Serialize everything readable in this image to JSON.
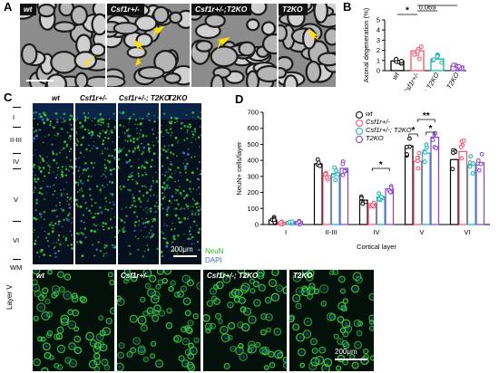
{
  "panel_labels": {
    "a": "A",
    "b": "B",
    "c": "C",
    "d": "D"
  },
  "panel_a": {
    "images": [
      {
        "label": "wt"
      },
      {
        "label": "Csf1r+/-"
      },
      {
        "label": "Csf1r+/-;T2KO"
      },
      {
        "label": "T2KO"
      }
    ]
  },
  "panel_c": {
    "columns": [
      "wt",
      "Csf1r+/-",
      "Csf1r+/-; T2KO",
      "T2KO"
    ],
    "layers": [
      "I",
      "II-III",
      "IV",
      "V",
      "VI",
      "WM"
    ],
    "scale_bar": "200μm",
    "stain_neun": "NeuN",
    "stain_dapi": "DAPI",
    "colors": {
      "neun": "#33cc33",
      "dapi": "#3f6fd8"
    }
  },
  "panel_lower": {
    "columns": [
      "wt",
      "Csf1r+/-",
      "Csf1r+/-; T2KO",
      "T2KO"
    ],
    "row_label": "Layer V",
    "scale_bar": "200μm"
  },
  "chart_data": [
    {
      "type": "bar",
      "panel": "B",
      "categories": [
        "wt",
        "Csf1r+/-",
        "Csf1r+/-; T2KO",
        "T2KO"
      ],
      "values": [
        0.95,
        1.95,
        1.15,
        0.45
      ],
      "colors": [
        "#000000",
        "#ff4f6e",
        "#11b5b5",
        "#8a3fd1"
      ],
      "ylabel": "Axonal degeneration (%)",
      "ylim": [
        0,
        5
      ],
      "yticks": [
        "0",
        "1",
        "2",
        "3",
        "4",
        "5"
      ],
      "annotations": [
        {
          "from": "wt",
          "to": "Csf1r+/-",
          "text": "*"
        },
        {
          "from": "Csf1r+/-",
          "to": "Csf1r+/-; T2KO",
          "text": "0.069"
        },
        {
          "from": "Csf1r+/-",
          "to": "T2KO",
          "text": "**"
        }
      ]
    },
    {
      "type": "bar",
      "panel": "D",
      "categories": [
        "I",
        "II-III",
        "IV",
        "V",
        "VI"
      ],
      "series": [
        {
          "name": "wt",
          "color": "#000000",
          "values": [
            28,
            378,
            152,
            490,
            405
          ]
        },
        {
          "name": "Csf1r+/-",
          "color": "#ff4f6e",
          "values": [
            14,
            305,
            130,
            395,
            455
          ]
        },
        {
          "name": "Csf1r+/-; T2KO",
          "color": "#11b5b5",
          "values": [
            18,
            318,
            172,
            445,
            372
          ]
        },
        {
          "name": "T2KO",
          "color": "#8a3fd1",
          "values": [
            18,
            350,
            222,
            545,
            385
          ]
        }
      ],
      "xlabel": "Cortical layer",
      "ylabel": "NeuN+ cells/layer",
      "ylim": [
        0,
        700
      ],
      "yticks": [
        "0",
        "100",
        "200",
        "300",
        "400",
        "500",
        "600",
        "700"
      ],
      "annotations": [
        {
          "layer": "IV",
          "text": "*"
        },
        {
          "layer": "V",
          "text": "*"
        },
        {
          "layer": "V",
          "text": "**"
        },
        {
          "layer": "V",
          "text": "*"
        }
      ]
    }
  ]
}
